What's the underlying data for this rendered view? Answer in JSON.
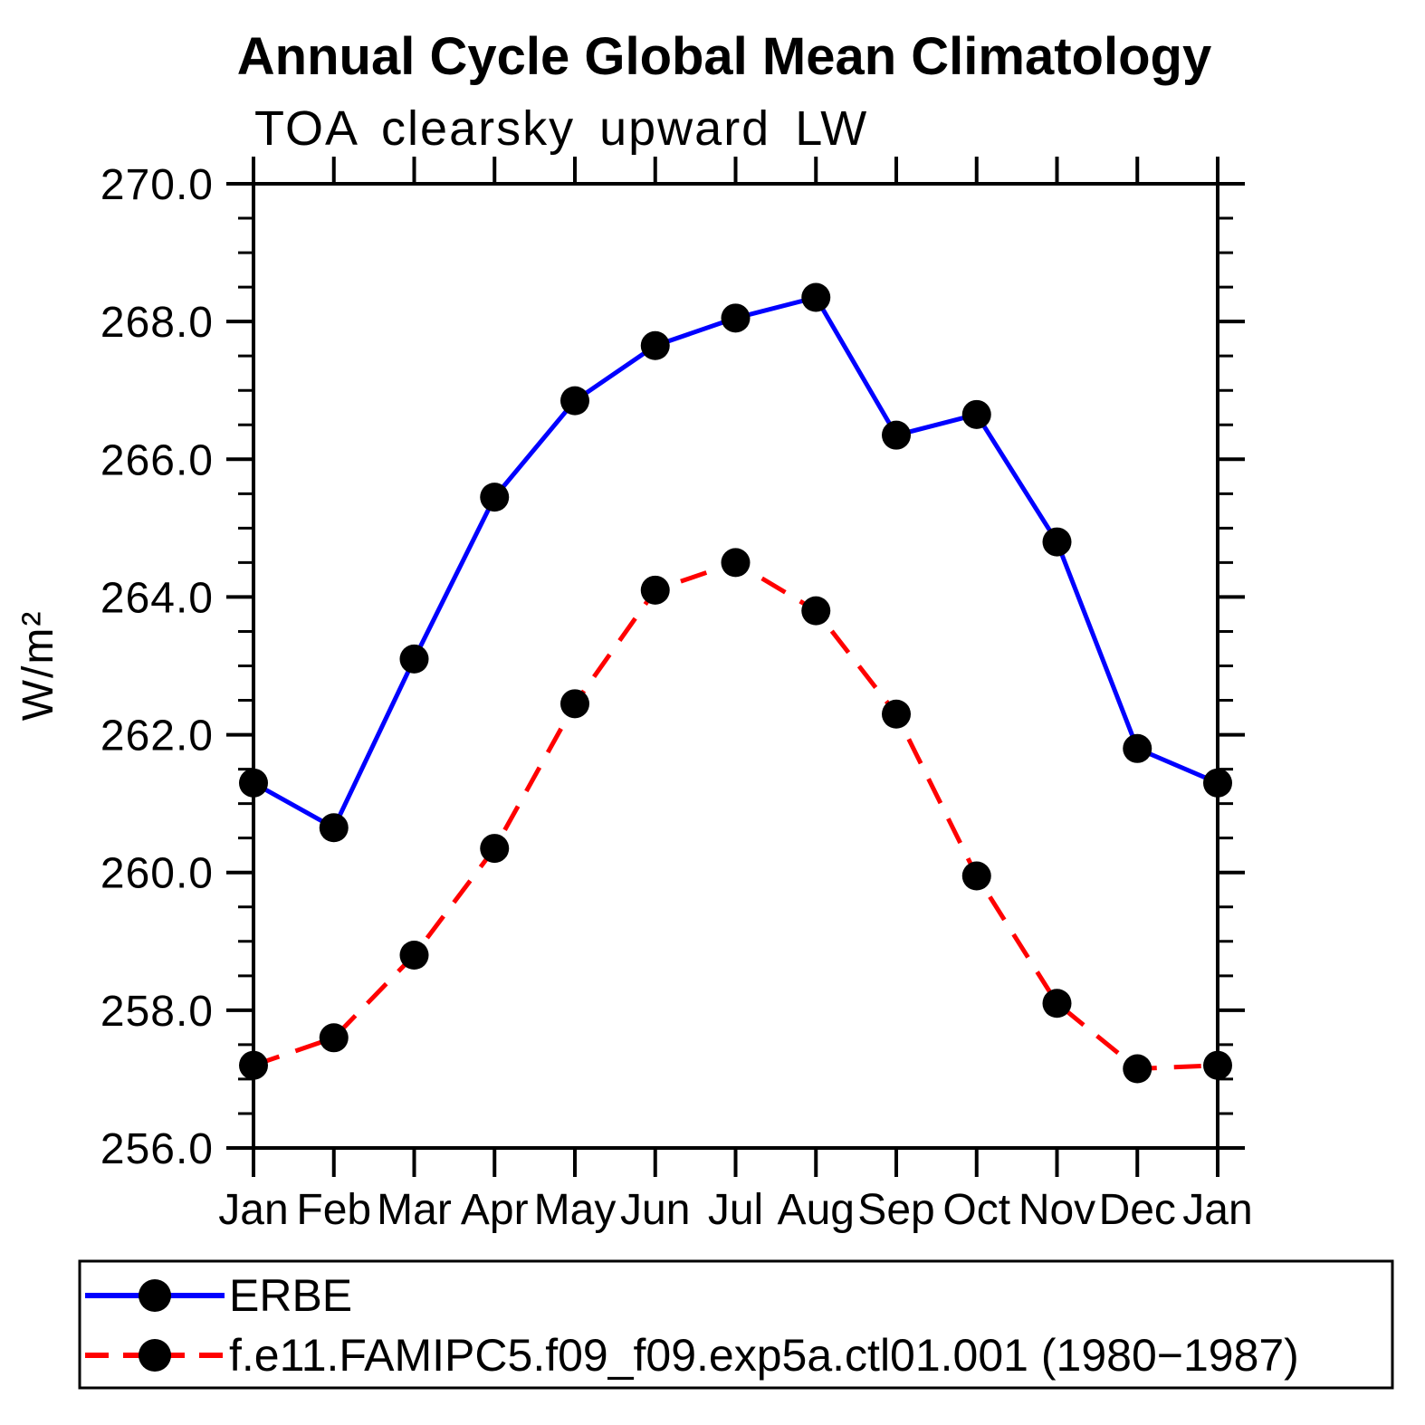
{
  "chart_data": {
    "type": "line",
    "title": "Annual Cycle Global Mean Climatology",
    "subtitle": "TOA clearsky upward LW",
    "xlabel": "",
    "ylabel": "W/m²",
    "categories": [
      "Jan",
      "Feb",
      "Mar",
      "Apr",
      "May",
      "Jun",
      "Jul",
      "Aug",
      "Sep",
      "Oct",
      "Nov",
      "Dec",
      "Jan"
    ],
    "ylim": [
      256.0,
      270.0
    ],
    "ytick_interval": 2.0,
    "yminor_interval": 0.5,
    "ytick_labels": [
      "256.0",
      "258.0",
      "260.0",
      "262.0",
      "264.0",
      "266.0",
      "268.0",
      "270.0"
    ],
    "grid": false,
    "legend_position": "bottom",
    "axis_color": "#000000",
    "marker_color": "#000000",
    "series": [
      {
        "name": "ERBE",
        "color": "#0000ff",
        "line_style": "solid",
        "marker": "circle",
        "values": [
          261.3,
          260.65,
          263.1,
          265.45,
          266.85,
          267.65,
          268.05,
          268.35,
          266.35,
          266.65,
          264.8,
          261.8,
          261.3
        ]
      },
      {
        "name": "f.e11.FAMIPC5.f09_f09.exp5a.ctl01.001 (1980−1987)",
        "color": "#ff0000",
        "line_style": "dashed",
        "marker": "circle",
        "values": [
          257.2,
          257.6,
          258.8,
          260.35,
          262.45,
          264.1,
          264.5,
          263.8,
          262.3,
          259.95,
          258.1,
          257.15,
          257.2
        ]
      }
    ]
  }
}
